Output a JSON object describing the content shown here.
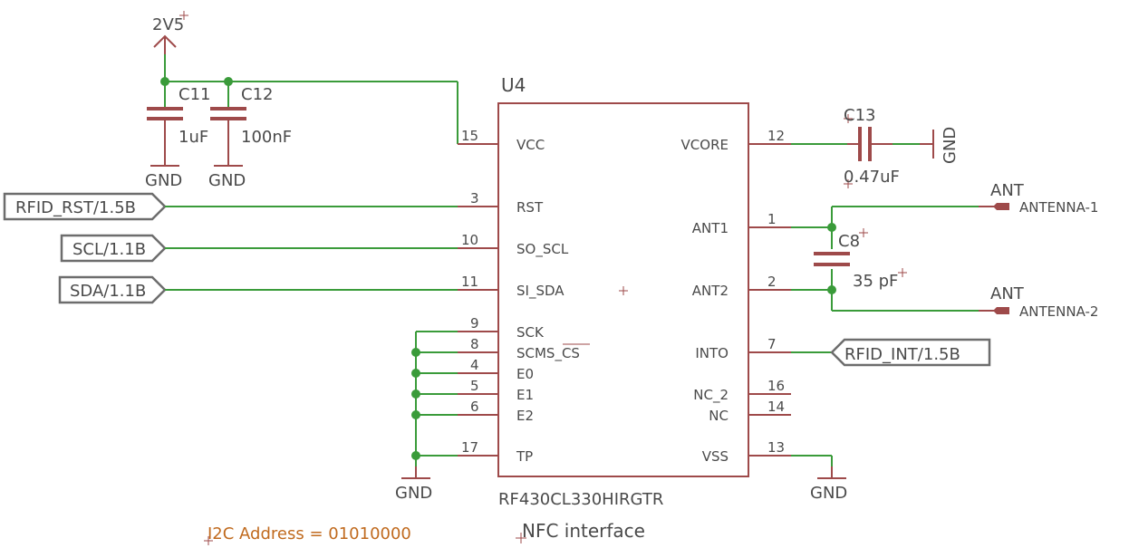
{
  "chip": {
    "ref": "U4",
    "value": "RF430CL330HIRGTR",
    "name": "NFC interface",
    "left_pins": [
      {
        "num": "15",
        "name": "VCC"
      },
      {
        "num": "3",
        "name": "RST"
      },
      {
        "num": "10",
        "name": "SO_SCL"
      },
      {
        "num": "11",
        "name": "SI_SDA"
      },
      {
        "num": "9",
        "name": "SCK"
      },
      {
        "num": "8",
        "name": "SCMS_CS"
      },
      {
        "num": "4",
        "name": "E0"
      },
      {
        "num": "5",
        "name": "E1"
      },
      {
        "num": "6",
        "name": "E2"
      },
      {
        "num": "17",
        "name": "TP"
      }
    ],
    "right_pins": [
      {
        "num": "12",
        "name": "VCORE"
      },
      {
        "num": "1",
        "name": "ANT1"
      },
      {
        "num": "2",
        "name": "ANT2"
      },
      {
        "num": "7",
        "name": "INTO"
      },
      {
        "num": "16",
        "name": "NC_2"
      },
      {
        "num": "14",
        "name": "NC"
      },
      {
        "num": "13",
        "name": "VSS"
      }
    ]
  },
  "power": {
    "rail": "2V5"
  },
  "ground_label": "GND",
  "capacitors": {
    "c11": {
      "ref": "C11",
      "value": "1uF"
    },
    "c12": {
      "ref": "C12",
      "value": "100nF"
    },
    "c13": {
      "ref": "C13",
      "value": "0.47uF"
    },
    "c8": {
      "ref": "C8",
      "value": "35 pF"
    }
  },
  "ports": {
    "rst": "RFID_RST/1.5B",
    "scl": "SCL/1.1B",
    "sda": "SDA/1.1B",
    "int": "RFID_INT/1.5B"
  },
  "antennas": {
    "a1": {
      "ref": "ANT",
      "value": "ANTENNA-1"
    },
    "a2": {
      "ref": "ANT",
      "value": "ANTENNA-2"
    }
  },
  "note": "I2C Address = 01010000"
}
